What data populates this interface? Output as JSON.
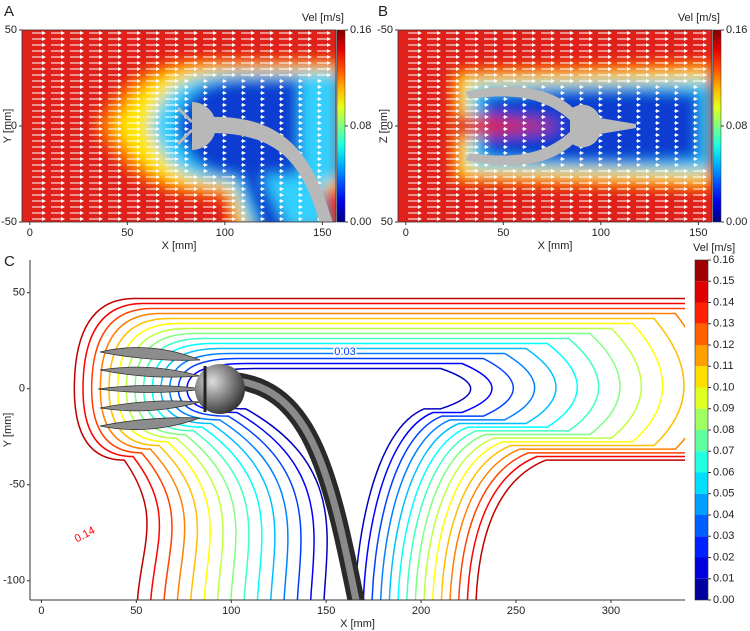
{
  "chart_data": [
    {
      "type": "heatmap",
      "panel": "A",
      "xlabel": "X [mm]",
      "ylabel": "Y [mm]",
      "xlim": [
        -4,
        157
      ],
      "ylim": [
        -50,
        50
      ],
      "xticks": [
        0,
        50,
        100,
        150
      ],
      "yticks": [
        -50,
        0,
        50
      ],
      "colorbar": {
        "title": "Vel [m/s]",
        "lim": [
          0,
          0.16
        ],
        "ticks": [
          {
            "value": 0,
            "label": "0.00"
          },
          {
            "value": 0.08,
            "label": "0.08"
          },
          0.16
        ]
      }
    },
    {
      "type": "heatmap",
      "panel": "B",
      "xlabel": "X [mm]",
      "ylabel": "Z [mm]",
      "xlim": [
        -4,
        157
      ],
      "ylim": [
        50,
        -50
      ],
      "xticks": [
        0,
        50,
        100,
        150
      ],
      "yticks": [
        -50,
        0,
        50
      ],
      "colorbar": {
        "title": "Vel [m/s]",
        "lim": [
          0,
          0.16
        ],
        "ticks": [
          {
            "value": 0,
            "label": "0.00"
          },
          {
            "value": 0.08,
            "label": "0.08"
          },
          0.16
        ]
      }
    },
    {
      "type": "contour",
      "panel": "C",
      "xlabel": "X [mm]",
      "ylabel": "Y [mm]",
      "xlim": [
        -6,
        339
      ],
      "ylim": [
        -110,
        67
      ],
      "xticks": [
        0,
        50,
        100,
        150,
        200,
        250,
        300
      ],
      "yticks": [
        -100,
        -50,
        0,
        50
      ],
      "levels": [
        0.01,
        0.02,
        0.03,
        0.04,
        0.05,
        0.06,
        0.07,
        0.08,
        0.09,
        0.1,
        0.11,
        0.12,
        0.13,
        0.14,
        0.15
      ],
      "annotations": [
        "0.03",
        "0.14"
      ],
      "colorbar": {
        "title": "Vel [m/s]",
        "lim": [
          0,
          0.16
        ],
        "ticks": [
          {
            "value": 0,
            "label": "0.00"
          },
          0.01,
          0.02,
          0.03,
          0.04,
          0.05,
          0.06,
          0.07,
          0.08,
          0.09,
          {
            "value": 0.1,
            "label": "0.10"
          },
          0.11,
          0.12,
          0.13,
          0.14,
          0.15,
          0.16
        ]
      }
    }
  ]
}
